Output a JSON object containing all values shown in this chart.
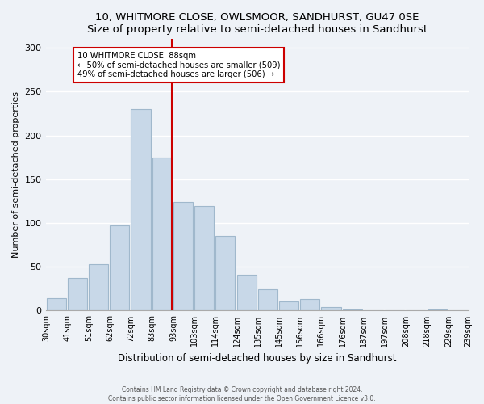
{
  "title": "10, WHITMORE CLOSE, OWLSMOOR, SANDHURST, GU47 0SE",
  "subtitle": "Size of property relative to semi-detached houses in Sandhurst",
  "xlabel": "Distribution of semi-detached houses by size in Sandhurst",
  "ylabel": "Number of semi-detached properties",
  "bar_color": "#c8d8e8",
  "bar_edge_color": "#a0b8cc",
  "tick_labels": [
    "30sqm",
    "41sqm",
    "51sqm",
    "62sqm",
    "72sqm",
    "83sqm",
    "93sqm",
    "103sqm",
    "114sqm",
    "124sqm",
    "135sqm",
    "145sqm",
    "156sqm",
    "166sqm",
    "176sqm",
    "187sqm",
    "197sqm",
    "208sqm",
    "218sqm",
    "229sqm",
    "239sqm"
  ],
  "values": [
    14,
    37,
    53,
    97,
    230,
    175,
    124,
    119,
    85,
    41,
    24,
    11,
    13,
    4,
    1,
    0,
    0,
    0,
    1,
    0
  ],
  "vline_color": "#cc0000",
  "annotation_title": "10 WHITMORE CLOSE: 88sqm",
  "annotation_line1": "← 50% of semi-detached houses are smaller (509)",
  "annotation_line2": "49% of semi-detached houses are larger (506) →",
  "annotation_box_color": "#ffffff",
  "annotation_box_edge": "#cc0000",
  "ylim": [
    0,
    310
  ],
  "yticks": [
    0,
    50,
    100,
    150,
    200,
    250,
    300
  ],
  "footer1": "Contains HM Land Registry data © Crown copyright and database right 2024.",
  "footer2": "Contains public sector information licensed under the Open Government Licence v3.0.",
  "background_color": "#eef2f7"
}
